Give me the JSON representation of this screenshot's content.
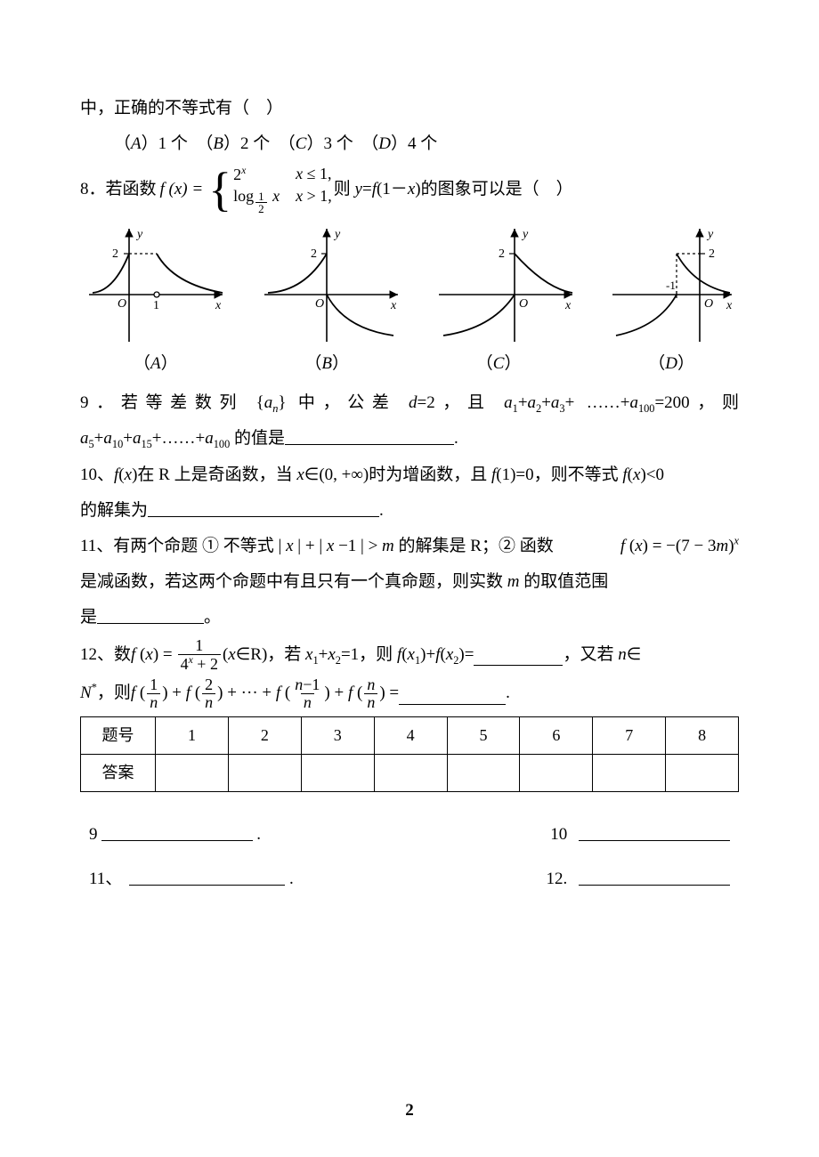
{
  "q7tail": "中，正确的不等式有（　）",
  "q7opts": "（<i>A</i>）1 个　（<i>B</i>）2 个　（<i>C</i>）3 个　（<i>D</i>）4 个",
  "q8lead": "8．若函数 ",
  "q8fx": "f (x) =",
  "q8p1l": "2<sup><i>x</i></sup>",
  "q8p1r": "<i>x</i> ≤ 1,",
  "q8p2l": "log<sub><span class='frac frac-sm'><span class='num'>1</span><span class='den'>2</span></span></sub> <i>x</i>",
  "q8p2r": "<i>x</i> &gt; 1,",
  "q8tail": " 则 <span class='italic'>y</span>=<span class='italic'>f</span>(1－<span class='italic'>x</span>)的图象可以是（　）",
  "labelA": "（<i>A</i>）",
  "labelB": "（<i>B</i>）",
  "labelC": "（<i>C</i>）",
  "labelD": "（<i>D</i>）",
  "q9": "9．若等差数列 {<span class='italic'>a<sub>n</sub></span>} 中，公差 <span class='italic'>d</span>=2，且 <span class='italic'>a</span><sub>1</sub>+<span class='italic'>a</span><sub>2</sub>+<span class='italic'>a</span><sub>3</sub>+ ……+<span class='italic'>a</span><sub>100</sub>=200，则",
  "q9b": "<span class='italic'>a</span><sub>5</sub>+<span class='italic'>a</span><sub>10</sub>+<span class='italic'>a</span><sub>15</sub>+……+<span class='italic'>a</span><sub>100</sub> 的值是",
  "q10": "10、<span class='italic'>f</span>(<span class='italic'>x</span>)在 R 上是奇函数，当 <span class='italic'>x</span>∈(0, +∞)时为增函数，且 <span class='italic'>f</span>(1)=0，则不等式 <span class='italic'>f</span>(<span class='italic'>x</span>)&lt;0",
  "q10b": "的解集为",
  "q11a": "11、有两个命题 ① 不等式 | <span class='italic'>x</span> | + | <span class='italic'>x</span> −1 | &gt; <span class='italic'>m</span> 的解集是 R；② 函数 ",
  "q11fn": "<span class='italic'>f</span> (<span class='italic'>x</span>) = −(7 − 3<span class='italic'>m</span>)<sup><i>x</i></sup>",
  "q11b": "是减函数，若这两个命题中有且只有一个真命题，则实数 <span class='italic'>m</span> 的取值范围",
  "q11c": "是",
  "q12a": "12、数 ",
  "q12fx": "<span class='italic'>f</span> (<span class='italic'>x</span>) =",
  "q12num": "1",
  "q12den": "4<sup><i>x</i></sup> + 2",
  "q12b": " (<span class='italic'>x</span>∈R)，若 <span class='italic'>x</span><sub>1</sub>+<span class='italic'>x</span><sub>2</sub>=1，则 <span class='italic'>f</span>(<span class='italic'>x</span><sub>1</sub>)+<span class='italic'>f</span>(<span class='italic'>x</span><sub>2</sub>)=",
  "q12c": "，又若 <span class='italic'>n</span>∈",
  "q12d_pre": "<span class='italic'>N</span><sup>*</sup>，则 ",
  "q12seq": "<span class='italic'>f</span> (<span class='frac'><span class='num'>1</span><span class='den'><i>n</i></span></span>) + <span class='italic'>f</span> (<span class='frac'><span class='num'>2</span><span class='den'><i>n</i></span></span>) + ··· + <span class='italic'>f</span> (<span class='frac'><span class='num'><i>n</i>−1</span><span class='den'><i>n</i></span></span>) + <span class='italic'>f</span> (<span class='frac'><span class='num'><i>n</i></span><span class='den'><i>n</i></span></span>) =",
  "table": {
    "h": "题号",
    "a": "答案",
    "cols": [
      "1",
      "2",
      "3",
      "4",
      "5",
      "6",
      "7",
      "8"
    ]
  },
  "fills": {
    "r1a": "9",
    "r1b": "10",
    "r2a": "11、",
    "r2b": "12."
  },
  "pagenum": "2",
  "graphs": {
    "axis_color": "#000000",
    "tick2": "2",
    "ylab": "y",
    "xlab": "x",
    "olab": "O",
    "neg1": "-1",
    "one": "1"
  }
}
